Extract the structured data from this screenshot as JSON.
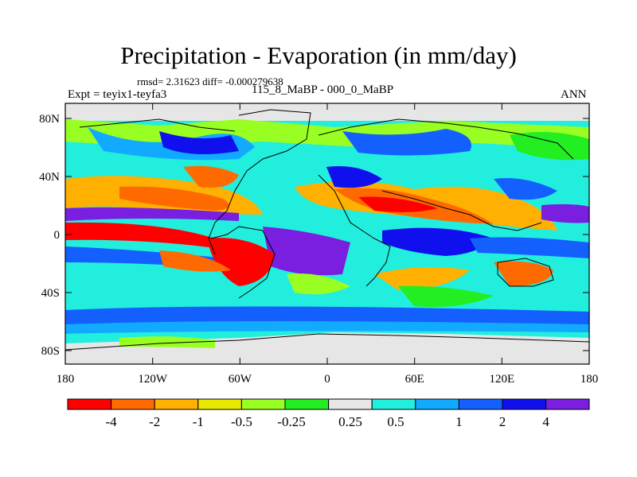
{
  "title": "Precipitation - Evaporation (in mm/day)",
  "stats": "rmsd= 2.31623 diff= -0.000279638",
  "experiment": "Expt = teyix1-teyfa3",
  "period": "115_8_MaBP - 000_0_MaBP",
  "season": "ANN",
  "axes": {
    "x_ticks": [
      "180",
      "120W",
      "60W",
      "0",
      "60E",
      "120E",
      "180"
    ],
    "y_ticks": [
      "80N",
      "40N",
      "0",
      "40S",
      "80S"
    ]
  },
  "colorbar": {
    "colors": [
      "#ff0000",
      "#ff6a00",
      "#ffb000",
      "#e8e800",
      "#99ff22",
      "#22ee22",
      "#e6e6e6",
      "#22eedd",
      "#11aaff",
      "#1460ff",
      "#1010ee",
      "#7a1ee0"
    ],
    "labels": [
      "-4",
      "-2",
      "-1",
      "-0.5",
      "-0.25",
      "0.25",
      "0.5",
      "1",
      "2",
      "4"
    ]
  }
}
